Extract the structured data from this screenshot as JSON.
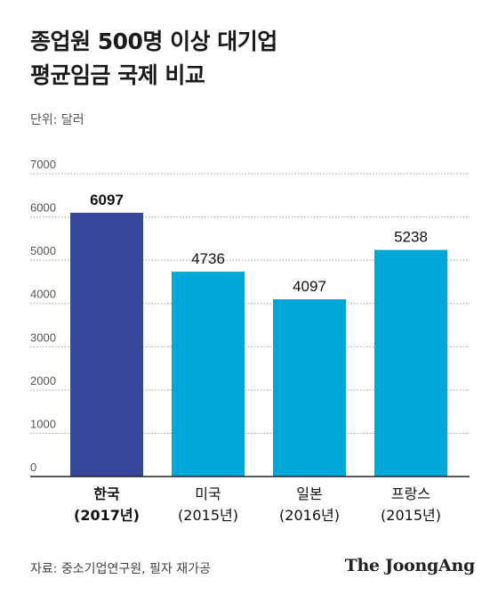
{
  "title": {
    "line1": "종업원 500명 이상 대기업",
    "line2": "평균임금 국제 비교"
  },
  "unit_label": "단위: 달러",
  "source": "자료: 중소기업연구원, 필자 재가공",
  "brand": "The JoongAng",
  "colors": {
    "highlight_bar": "#38459c",
    "bar": "#00a8d9",
    "grid": "#9a9a9a",
    "axis": "#222222"
  },
  "chart_data": {
    "type": "bar",
    "categories": [
      {
        "name": "한국",
        "year": "(2017년)",
        "highlight": true
      },
      {
        "name": "미국",
        "year": "(2015년)",
        "highlight": false
      },
      {
        "name": "일본",
        "year": "(2016년)",
        "highlight": false
      },
      {
        "name": "프랑스",
        "year": "(2015년)",
        "highlight": false
      }
    ],
    "values": [
      6097,
      4736,
      4097,
      5238
    ],
    "ylim": [
      0,
      7000
    ],
    "yticks": [
      0,
      1000,
      2000,
      3000,
      4000,
      5000,
      6000,
      7000
    ],
    "grid": true,
    "legend": "none"
  }
}
